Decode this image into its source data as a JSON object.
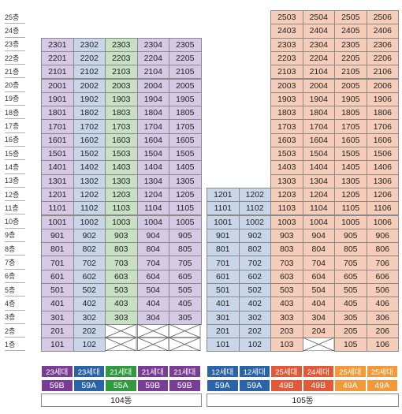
{
  "floors": [
    "25층",
    "24층",
    "23층",
    "22층",
    "21층",
    "20층",
    "19층",
    "18층",
    "17층",
    "16층",
    "15층",
    "14층",
    "13층",
    "12층",
    "11층",
    "10층",
    "9층",
    "8층",
    "7층",
    "6층",
    "5층",
    "4층",
    "3층",
    "2층",
    "1층"
  ],
  "colors": {
    "purple": "#d6c9e6",
    "blue": "#c9d6ea",
    "green": "#c8e0c4",
    "salmon": "#f6cdb8",
    "tag_purple": "#7a3d96",
    "tag_blue": "#2a63a8",
    "tag_green": "#2f9a3e",
    "tag_red": "#e05a3a",
    "tag_orange": "#f29a3a"
  },
  "buildings": [
    {
      "label": "104동",
      "lines": [
        {
          "line": "01",
          "color": "purple",
          "top_floor": 23,
          "bottom_floor": 1,
          "missing": [],
          "crossed": [],
          "type_count": "23세대",
          "type": "59B",
          "tag_color": "tag_purple"
        },
        {
          "line": "02",
          "color": "blue",
          "top_floor": 23,
          "bottom_floor": 1,
          "missing": [],
          "crossed": [],
          "type_count": "23세대",
          "type": "59A",
          "tag_color": "tag_blue"
        },
        {
          "line": "03",
          "color": "green",
          "top_floor": 23,
          "bottom_floor": 3,
          "missing": [],
          "crossed": [
            2,
            1
          ],
          "type_count": "21세대",
          "type": "55A",
          "tag_color": "tag_green"
        },
        {
          "line": "04",
          "color": "purple",
          "top_floor": 23,
          "bottom_floor": 3,
          "missing": [],
          "crossed": [
            2,
            1
          ],
          "type_count": "21세대",
          "type": "59B",
          "tag_color": "tag_purple"
        },
        {
          "line": "05",
          "color": "purple",
          "top_floor": 23,
          "bottom_floor": 3,
          "missing": [],
          "crossed": [
            2,
            1
          ],
          "type_count": "21세대",
          "type": "59B",
          "tag_color": "tag_purple"
        }
      ]
    },
    {
      "label": "105동",
      "lines": [
        {
          "line": "01",
          "color": "blue",
          "top_floor": 12,
          "bottom_floor": 1,
          "missing": [],
          "crossed": [],
          "type_count": "12세대",
          "type": "59A",
          "tag_color": "tag_blue"
        },
        {
          "line": "02",
          "color": "blue",
          "top_floor": 12,
          "bottom_floor": 1,
          "missing": [],
          "crossed": [],
          "type_count": "12세대",
          "type": "59A",
          "tag_color": "tag_blue"
        },
        {
          "line": "03",
          "color": "salmon",
          "top_floor": 25,
          "bottom_floor": 1,
          "missing": [],
          "crossed": [],
          "type_count": "25세대",
          "type": "49B",
          "tag_color": "tag_red"
        },
        {
          "line": "04",
          "color": "salmon",
          "top_floor": 25,
          "bottom_floor": 2,
          "missing": [],
          "crossed": [
            1
          ],
          "type_count": "24세대",
          "type": "49B",
          "tag_color": "tag_red"
        },
        {
          "line": "05",
          "color": "salmon",
          "top_floor": 25,
          "bottom_floor": 1,
          "missing": [],
          "crossed": [],
          "type_count": "25세대",
          "type": "49A",
          "tag_color": "tag_orange"
        },
        {
          "line": "06",
          "color": "salmon",
          "top_floor": 25,
          "bottom_floor": 1,
          "missing": [],
          "crossed": [],
          "type_count": "25세대",
          "type": "49A",
          "tag_color": "tag_orange"
        }
      ]
    }
  ]
}
